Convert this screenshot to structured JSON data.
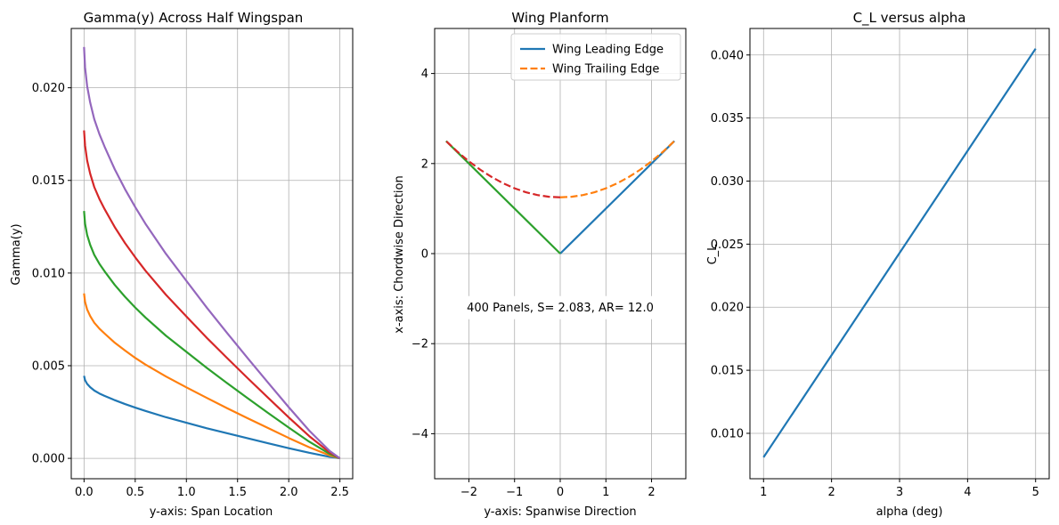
{
  "chart_data": [
    {
      "type": "line",
      "title": "Gamma(y) Across Half Wingspan",
      "xlabel": "y-axis: Span Location",
      "ylabel": "Gamma(y)",
      "xlim": [
        -0.125,
        2.625
      ],
      "ylim": [
        -0.0011,
        0.0232
      ],
      "xticks": [
        0.0,
        0.5,
        1.0,
        1.5,
        2.0,
        2.5
      ],
      "xtick_labels": [
        "0.0",
        "0.5",
        "1.0",
        "1.5",
        "2.0",
        "2.5"
      ],
      "yticks": [
        0.0,
        0.005,
        0.01,
        0.015,
        0.02
      ],
      "ytick_labels": [
        "0.000",
        "0.005",
        "0.010",
        "0.015",
        "0.020"
      ],
      "grid": true,
      "x": [
        0,
        0.01,
        0.03,
        0.06,
        0.1,
        0.15,
        0.2,
        0.3,
        0.4,
        0.5,
        0.6,
        0.8,
        1.0,
        1.2,
        1.4,
        1.6,
        1.8,
        2.0,
        2.2,
        2.4,
        2.5
      ],
      "series": [
        {
          "color": "#1f77b4",
          "values": [
            0.00445,
            0.00422,
            0.00402,
            0.00384,
            0.00366,
            0.0035,
            0.00337,
            0.00314,
            0.00293,
            0.00274,
            0.00256,
            0.00222,
            0.00192,
            0.00162,
            0.00135,
            0.00108,
            0.00081,
            0.00055,
            0.0003,
            8e-05,
            0.0
          ]
        },
        {
          "color": "#ff7f0e",
          "values": [
            0.0089,
            0.00844,
            0.00804,
            0.00768,
            0.00732,
            0.007,
            0.00674,
            0.00624,
            0.00582,
            0.00542,
            0.00506,
            0.00442,
            0.00383,
            0.00326,
            0.0027,
            0.00216,
            0.00163,
            0.0011,
            0.0006,
            0.00016,
            0.0
          ]
        },
        {
          "color": "#2ca02c",
          "values": [
            0.01335,
            0.01266,
            0.01206,
            0.01152,
            0.01098,
            0.0105,
            0.0101,
            0.00936,
            0.00872,
            0.00814,
            0.0076,
            0.00662,
            0.00575,
            0.00488,
            0.00405,
            0.00324,
            0.00244,
            0.00166,
            0.0009,
            0.00024,
            0.0
          ]
        },
        {
          "color": "#d62728",
          "values": [
            0.0177,
            0.01688,
            0.01608,
            0.01536,
            0.01464,
            0.014,
            0.01346,
            0.01248,
            0.01162,
            0.01085,
            0.01013,
            0.00883,
            0.00766,
            0.0065,
            0.0054,
            0.00432,
            0.00326,
            0.00221,
            0.0012,
            0.00032,
            0.0
          ]
        },
        {
          "color": "#9467bd",
          "values": [
            0.0222,
            0.0211,
            0.0201,
            0.0192,
            0.0183,
            0.0175,
            0.01683,
            0.0156,
            0.01453,
            0.01356,
            0.01266,
            0.01104,
            0.00958,
            0.00813,
            0.00675,
            0.0054,
            0.00407,
            0.00276,
            0.0015,
            0.0004,
            0.0
          ]
        }
      ]
    },
    {
      "type": "line",
      "title": "Wing Planform",
      "xlabel": "y-axis: Spanwise Direction",
      "ylabel": "x-axis: Chordwise Direction",
      "xlim": [
        -2.75,
        2.75
      ],
      "ylim": [
        -5,
        5
      ],
      "xticks": [
        -2,
        -1,
        0,
        1,
        2
      ],
      "xtick_labels": [
        "−2",
        "−1",
        "0",
        "1",
        "2"
      ],
      "yticks": [
        -4,
        -2,
        0,
        2,
        4
      ],
      "ytick_labels": [
        "−4",
        "−2",
        "0",
        "2",
        "4"
      ],
      "grid": true,
      "legend": {
        "placement": "top-right",
        "entries": [
          "Wing Leading Edge",
          "Wing Trailing Edge"
        ]
      },
      "annotation": "400 Panels, S= 2.083, AR= 12.0",
      "series": [
        {
          "name": "Wing Leading Edge",
          "color": "#1f77b4",
          "style": "solid",
          "x": [
            0,
            2.5
          ],
          "y": [
            0,
            2.5
          ]
        },
        {
          "name": "Wing Trailing Edge",
          "color": "#ff7f0e",
          "style": "dashed",
          "x": [
            0,
            0.25,
            0.5,
            0.75,
            1.0,
            1.25,
            1.5,
            1.75,
            2.0,
            2.25,
            2.5
          ],
          "y": [
            1.25,
            1.2625,
            1.3,
            1.3625,
            1.45,
            1.5625,
            1.7,
            1.8625,
            2.05,
            2.2625,
            2.5
          ]
        },
        {
          "color": "#2ca02c",
          "style": "solid",
          "x": [
            0,
            -2.5
          ],
          "y": [
            0,
            2.5
          ]
        },
        {
          "color": "#d62728",
          "style": "dashed",
          "x": [
            0,
            -0.25,
            -0.5,
            -0.75,
            -1.0,
            -1.25,
            -1.5,
            -1.75,
            -2.0,
            -2.25,
            -2.5
          ],
          "y": [
            1.25,
            1.2625,
            1.3,
            1.3625,
            1.45,
            1.5625,
            1.7,
            1.8625,
            2.05,
            2.2625,
            2.5
          ]
        }
      ]
    },
    {
      "type": "line",
      "title": "C_L versus alpha",
      "xlabel": "alpha (deg)",
      "ylabel": "C_L",
      "xlim": [
        0.8,
        5.2
      ],
      "ylim": [
        0.0064,
        0.0421
      ],
      "xticks": [
        1,
        2,
        3,
        4,
        5
      ],
      "xtick_labels": [
        "1",
        "2",
        "3",
        "4",
        "5"
      ],
      "yticks": [
        0.01,
        0.015,
        0.02,
        0.025,
        0.03,
        0.035,
        0.04
      ],
      "ytick_labels": [
        "0.010",
        "0.015",
        "0.020",
        "0.025",
        "0.030",
        "0.035",
        "0.040"
      ],
      "grid": true,
      "series": [
        {
          "color": "#1f77b4",
          "x": [
            1,
            2,
            3,
            4,
            5
          ],
          "values": [
            0.0081,
            0.0162,
            0.0243,
            0.0324,
            0.0405
          ]
        }
      ]
    }
  ]
}
